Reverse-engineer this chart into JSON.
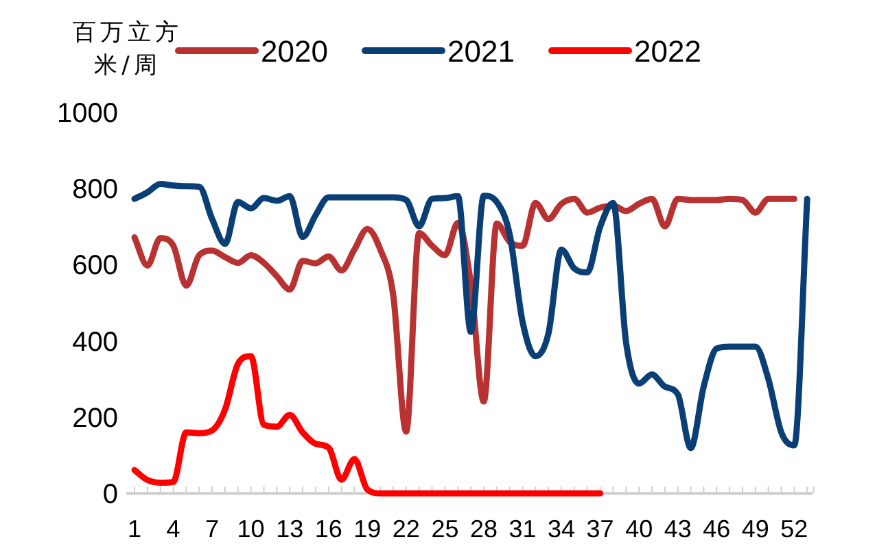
{
  "chart_data": {
    "type": "line",
    "ylabel": "百万立方米/周",
    "categories": [
      "1",
      null,
      null,
      "4",
      null,
      null,
      "7",
      null,
      null,
      "10",
      null,
      null,
      "13",
      null,
      null,
      "16",
      null,
      null,
      "19",
      null,
      null,
      "22",
      null,
      null,
      "25",
      null,
      null,
      "28",
      null,
      null,
      "31",
      null,
      null,
      "34",
      null,
      null,
      "37",
      null,
      null,
      "40",
      null,
      null,
      "43",
      null,
      null,
      "46",
      null,
      null,
      "49",
      null,
      null,
      "52",
      null
    ],
    "series": [
      {
        "name": "2020",
        "color": "#b83232",
        "values": [
          672,
          598,
          670,
          650,
          545,
          625,
          637,
          620,
          605,
          625,
          605,
          570,
          535,
          610,
          604,
          622,
          585,
          640,
          694,
          640,
          520,
          162,
          683,
          650,
          625,
          710,
          550,
          241,
          708,
          660,
          650,
          762,
          720,
          760,
          773,
          737,
          750,
          755,
          741,
          760,
          773,
          701,
          773,
          770,
          770,
          770,
          773,
          770,
          737,
          773,
          773,
          773,
          null
        ]
      },
      {
        "name": "2021",
        "color": "#0a3f75",
        "values": [
          773,
          790,
          812,
          808,
          806,
          805,
          720,
          655,
          765,
          748,
          775,
          768,
          780,
          673,
          730,
          777,
          777,
          777,
          777,
          777,
          777,
          770,
          701,
          773,
          775,
          780,
          424,
          781,
          765,
          680,
          450,
          360,
          420,
          640,
          590,
          580,
          700,
          762,
          396,
          288,
          312,
          280,
          260,
          119,
          280,
          380,
          385,
          385,
          385,
          300,
          160,
          126,
          773
        ]
      },
      {
        "name": "2022",
        "color": "#ff0000",
        "values": [
          61,
          35,
          28,
          30,
          160,
          158,
          165,
          220,
          340,
          360,
          180,
          175,
          206,
          160,
          130,
          120,
          36,
          90,
          10,
          0,
          0,
          0,
          0,
          0,
          0,
          0,
          0,
          0,
          0,
          0,
          0,
          0,
          0,
          0,
          0,
          0,
          0,
          null,
          null,
          null,
          null,
          null,
          null,
          null,
          null,
          null,
          null,
          null,
          null,
          null,
          null,
          null,
          null
        ]
      }
    ],
    "ylim": [
      0,
      1000
    ],
    "yticks": [
      0,
      200,
      400,
      600,
      800,
      1000
    ],
    "legend": "top",
    "grid": false
  }
}
